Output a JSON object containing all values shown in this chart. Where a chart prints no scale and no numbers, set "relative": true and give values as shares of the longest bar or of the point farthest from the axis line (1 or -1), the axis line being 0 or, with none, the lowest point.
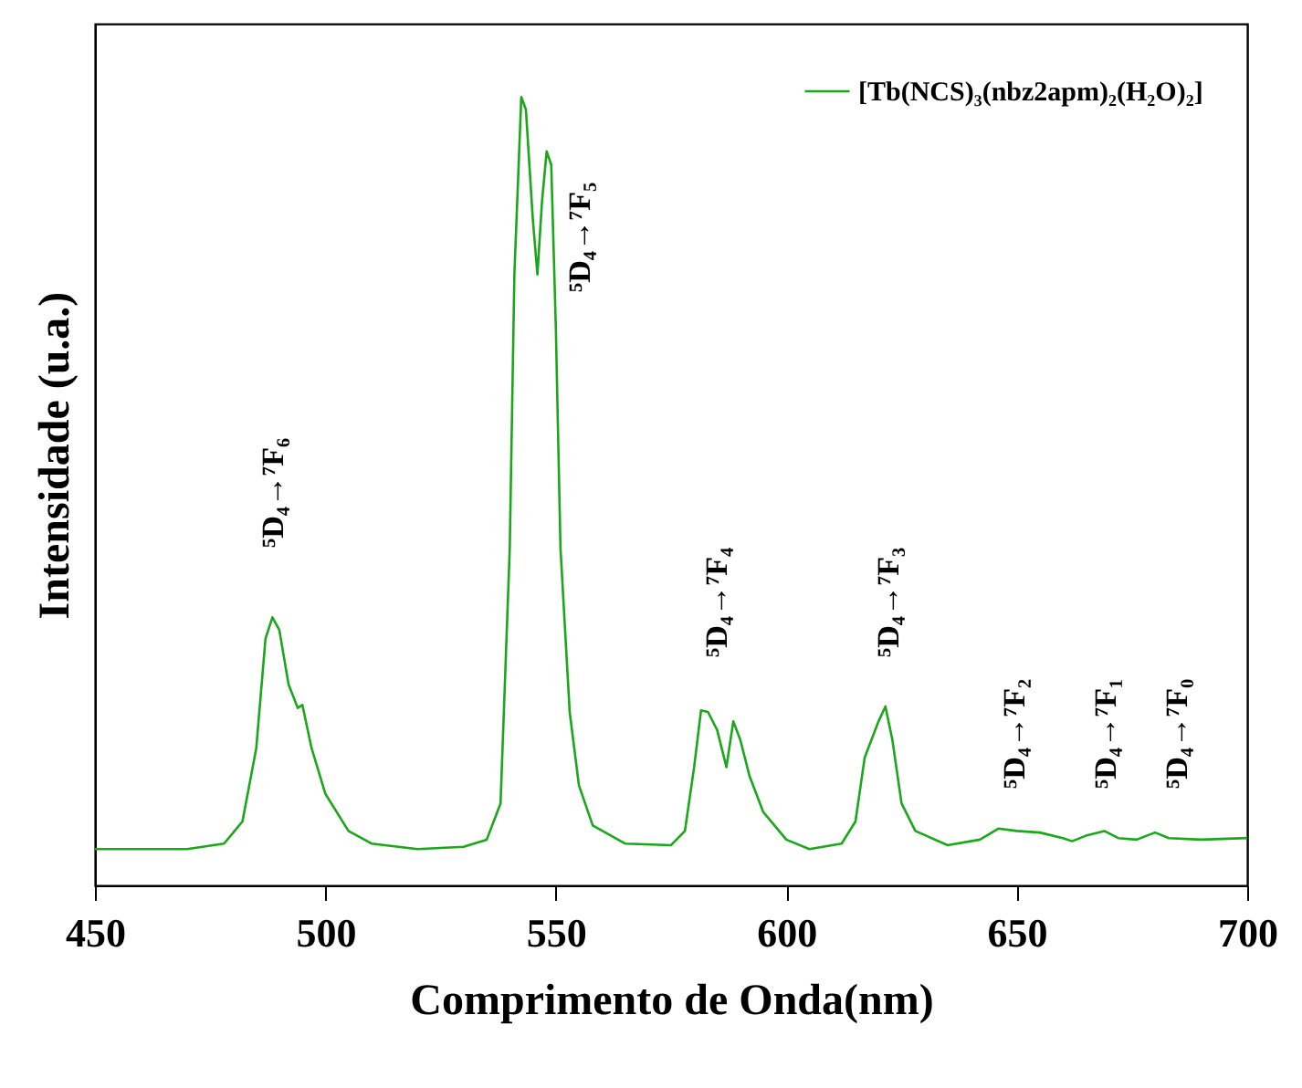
{
  "chart_data": {
    "type": "line",
    "relative": true,
    "xlabel": "Comprimento de Onda(nm)",
    "ylabel": "Intensidade (u.a.)",
    "xlim": [
      450,
      700
    ],
    "xticks": [
      450,
      500,
      550,
      600,
      650,
      700
    ],
    "grid": false,
    "legend": "top right",
    "line_style": "solid",
    "marker": "none",
    "x": [
      450,
      470,
      478,
      482,
      485,
      487,
      488.5,
      490,
      492,
      494,
      495,
      497,
      500,
      505,
      510,
      520,
      530,
      535,
      538,
      540,
      541,
      542.5,
      543.5,
      545,
      546,
      547,
      548,
      549,
      550,
      551,
      553,
      555,
      558,
      565,
      575,
      578,
      580,
      581.5,
      583,
      585,
      587,
      588.5,
      590,
      592,
      595,
      600,
      605,
      612,
      615,
      617,
      620,
      621.5,
      623,
      625,
      628,
      635,
      642,
      646,
      650,
      655,
      660,
      662,
      665,
      669,
      672,
      676,
      680,
      683,
      690,
      700
    ],
    "series": [
      {
        "name": "[Tb(NCS)₃(nbz2apm)₂(H₂O)₂]",
        "color": "#1aa81a",
        "values": [
          0.046,
          0.046,
          0.053,
          0.081,
          0.174,
          0.313,
          0.34,
          0.324,
          0.255,
          0.225,
          0.229,
          0.174,
          0.116,
          0.069,
          0.053,
          0.046,
          0.049,
          0.058,
          0.104,
          0.428,
          0.775,
          1,
          0.984,
          0.845,
          0.775,
          0.868,
          0.931,
          0.914,
          0.706,
          0.428,
          0.22,
          0.127,
          0.076,
          0.053,
          0.051,
          0.069,
          0.15,
          0.222,
          0.22,
          0.197,
          0.15,
          0.208,
          0.185,
          0.139,
          0.093,
          0.058,
          0.046,
          0.053,
          0.081,
          0.162,
          0.208,
          0.227,
          0.185,
          0.104,
          0.069,
          0.051,
          0.058,
          0.072,
          0.069,
          0.067,
          0.06,
          0.056,
          0.063,
          0.069,
          0.06,
          0.058,
          0.067,
          0.06,
          0.058,
          0.06
        ]
      }
    ],
    "annotations": [
      "⁵D₄→⁷F₆",
      "⁵D₄→⁷F₅",
      "⁵D₄→⁷F₄",
      "⁵D₄→⁷F₃",
      "⁵D₄→⁷F₂",
      "⁵D₄→⁷F₁",
      "⁵D₄→⁷F₀"
    ]
  }
}
